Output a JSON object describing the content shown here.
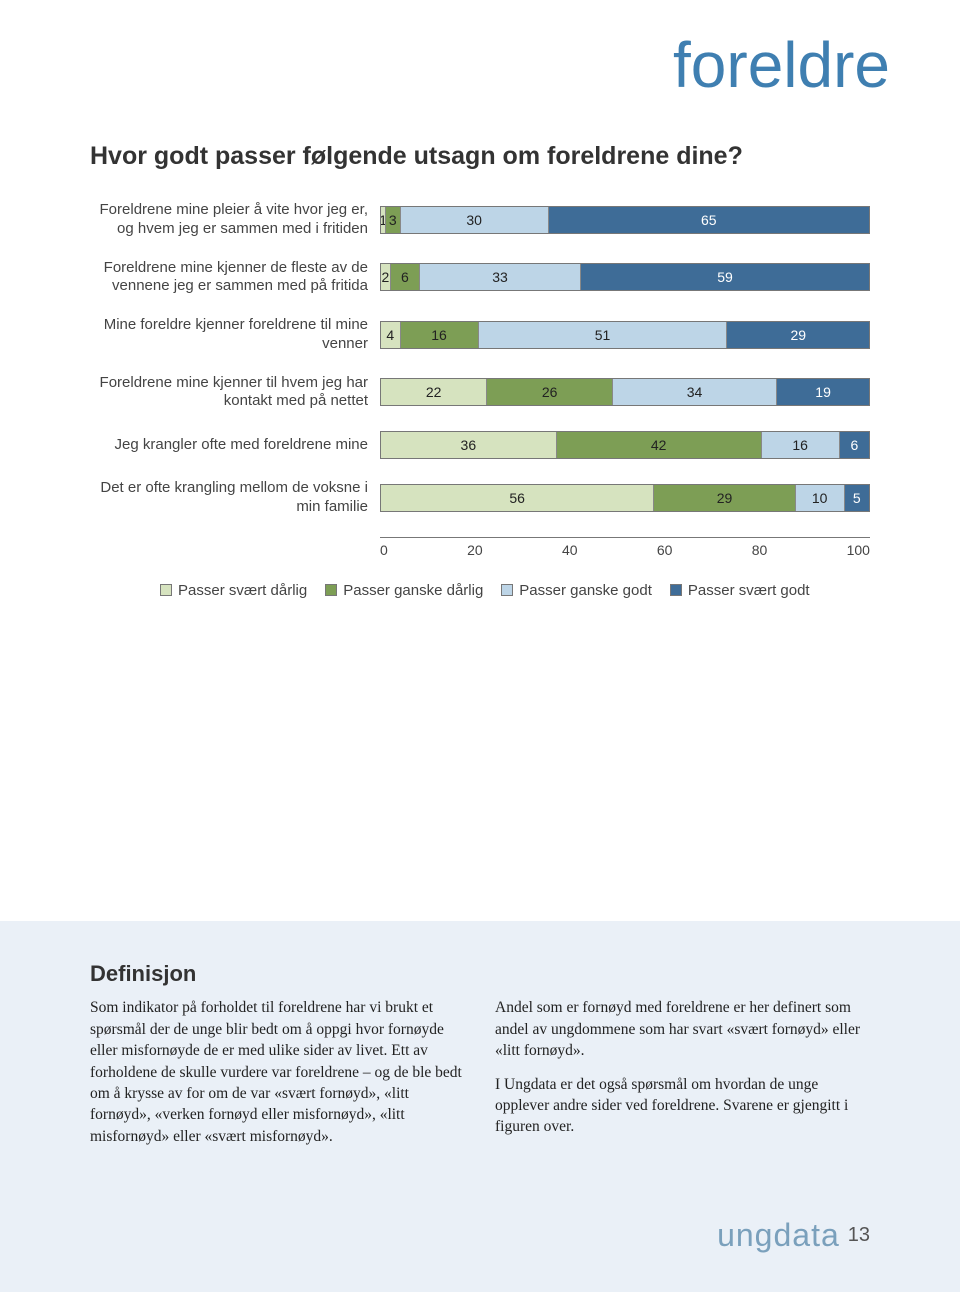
{
  "page": {
    "title": "foreldre",
    "title_color": "#3f7fb1",
    "page_number": "13",
    "logo_text": "ungdata",
    "logo_color": "#7aa0bc"
  },
  "chart": {
    "title": "Hvor godt passer følgende utsagn om foreldrene dine?",
    "colors": {
      "c1": "#d6e3bf",
      "c2": "#7d9e55",
      "c3": "#bdd5e7",
      "c4": "#3e6c97"
    },
    "legend": [
      {
        "label": "Passer svært dårlig",
        "color": "c1"
      },
      {
        "label": "Passer ganske dårlig",
        "color": "c2"
      },
      {
        "label": "Passer ganske godt",
        "color": "c3"
      },
      {
        "label": "Passer svært godt",
        "color": "c4"
      }
    ],
    "axis_ticks": [
      "0",
      "20",
      "40",
      "60",
      "80",
      "100"
    ],
    "rows": [
      {
        "label": "Foreldrene mine pleier å vite hvor jeg er, og hvem jeg er sammen med i fritiden",
        "segments": [
          {
            "v": 1,
            "t": "1",
            "c": "c1"
          },
          {
            "v": 3,
            "t": "3",
            "c": "c2"
          },
          {
            "v": 30,
            "t": "30",
            "c": "c3"
          },
          {
            "v": 65,
            "t": "65",
            "c": "c4"
          }
        ]
      },
      {
        "label": "Foreldrene mine kjenner de fleste av de vennene jeg er sammen med på fritida",
        "segments": [
          {
            "v": 2,
            "t": "2",
            "c": "c1"
          },
          {
            "v": 6,
            "t": "6",
            "c": "c2"
          },
          {
            "v": 33,
            "t": "33",
            "c": "c3"
          },
          {
            "v": 59,
            "t": "59",
            "c": "c4"
          }
        ]
      },
      {
        "label": "Mine foreldre kjenner foreldrene til mine venner",
        "segments": [
          {
            "v": 4,
            "t": "4",
            "c": "c1"
          },
          {
            "v": 16,
            "t": "16",
            "c": "c2"
          },
          {
            "v": 51,
            "t": "51",
            "c": "c3"
          },
          {
            "v": 29,
            "t": "29",
            "c": "c4"
          }
        ]
      },
      {
        "label": "Foreldrene mine kjenner til hvem jeg har kontakt med på nettet",
        "segments": [
          {
            "v": 22,
            "t": "22",
            "c": "c1"
          },
          {
            "v": 26,
            "t": "26",
            "c": "c2"
          },
          {
            "v": 34,
            "t": "34",
            "c": "c3"
          },
          {
            "v": 19,
            "t": "19",
            "c": "c4"
          }
        ]
      },
      {
        "label": "Jeg krangler ofte med foreldrene mine",
        "segments": [
          {
            "v": 36,
            "t": "36",
            "c": "c1"
          },
          {
            "v": 42,
            "t": "42",
            "c": "c2"
          },
          {
            "v": 16,
            "t": "16",
            "c": "c3"
          },
          {
            "v": 6,
            "t": "6",
            "c": "c4"
          }
        ]
      },
      {
        "label": "Det er ofte krangling mellom de voksne i min familie",
        "segments": [
          {
            "v": 56,
            "t": "56",
            "c": "c1"
          },
          {
            "v": 29,
            "t": "29",
            "c": "c2"
          },
          {
            "v": 10,
            "t": "10",
            "c": "c3"
          },
          {
            "v": 5,
            "t": "5",
            "c": "c4"
          }
        ]
      }
    ]
  },
  "definition": {
    "background_color": "#eaf0f7",
    "heading": "Definisjon",
    "left": "Som indikator på forholdet til foreldrene har vi brukt et spørsmål der de unge blir bedt om å oppgi hvor fornøyde eller misfornøyde de er med ulike sider av livet. Ett av forholdene de skulle vurdere var foreldrene – og de ble bedt om å krysse av for om de var «svært fornøyd», «litt fornøyd», «verken fornøyd eller misfornøyd», «litt misfornøyd» eller «svært misfornøyd».",
    "right_p1": "Andel som er fornøyd med foreldrene er her definert som andel av ungdommene som har svart «svært fornøyd» eller «litt fornøyd».",
    "right_p2": "I Ungdata er det også spørsmål om hvordan de unge opplever andre sider ved foreldrene. Svarene er gjengitt i figuren over."
  }
}
